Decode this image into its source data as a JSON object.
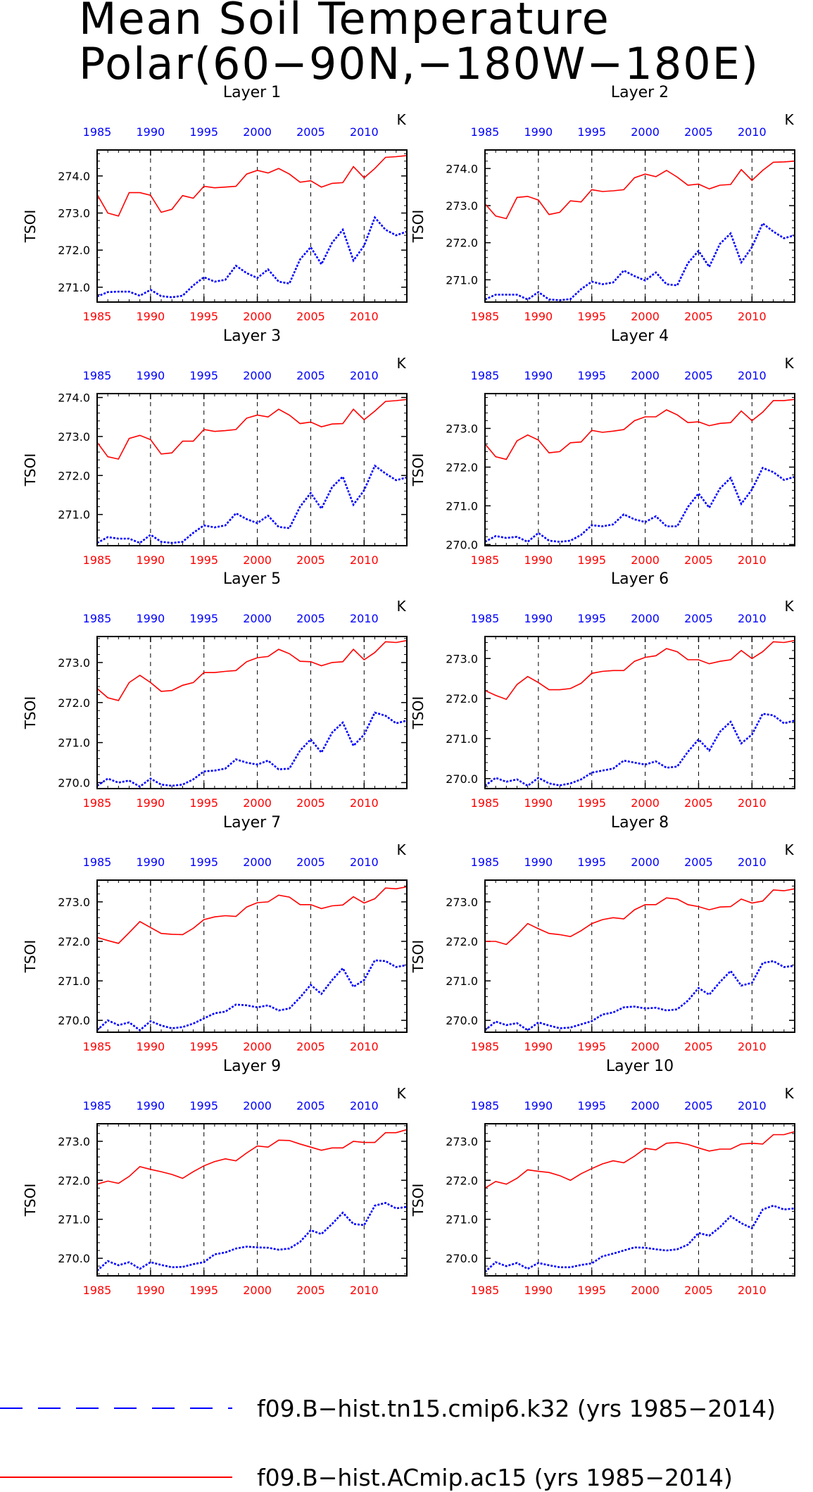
{
  "chart_data": {
    "type": "line",
    "title_lines": [
      "Mean Soil Temperature",
      "Polar(60−90N,−180W−180E)"
    ],
    "x": [
      1985,
      1986,
      1987,
      1988,
      1989,
      1990,
      1991,
      1992,
      1993,
      1994,
      1995,
      1996,
      1997,
      1998,
      1999,
      2000,
      2001,
      2002,
      2003,
      2004,
      2005,
      2006,
      2007,
      2008,
      2009,
      2010,
      2011,
      2012,
      2013,
      2014
    ],
    "xlim": [
      1985,
      2014
    ],
    "xticks": [
      1985,
      1990,
      1995,
      2000,
      2005,
      2010
    ],
    "ylabel": "TSOI",
    "unit": "K",
    "top_axis_color": "#0000ff",
    "bottom_axis_color": "#ff0000",
    "grid": "dashed vertical at 1990, 1995, 2000, 2005, 2010",
    "legend": [
      {
        "label": "f09.B−hist.tn15.cmip6.k32 (yrs 1985−2014)",
        "color": "#0000ff",
        "style": "dashed"
      },
      {
        "label": "f09.B−hist.ACmip.ac15 (yrs 1985−2014)",
        "color": "#ff0000",
        "style": "solid"
      }
    ],
    "panels": [
      {
        "title": "Layer 1",
        "ylim": [
          270.6,
          274.7
        ],
        "yticks": [
          "271.0",
          "272.0",
          "273.0",
          "274.0"
        ],
        "series": [
          {
            "color": "#0000ff",
            "values": [
              270.75,
              270.87,
              270.88,
              270.88,
              270.77,
              270.93,
              270.76,
              270.73,
              270.77,
              271.05,
              271.27,
              271.15,
              271.2,
              271.58,
              271.38,
              271.25,
              271.48,
              271.15,
              271.1,
              271.75,
              272.08,
              271.62,
              272.2,
              272.55,
              271.72,
              272.12,
              272.88,
              272.55,
              272.4,
              272.5
            ]
          },
          {
            "color": "#ff0000",
            "values": [
              273.5,
              273.0,
              272.92,
              273.55,
              273.55,
              273.48,
              273.02,
              273.1,
              273.47,
              273.4,
              273.72,
              273.68,
              273.7,
              273.72,
              274.05,
              274.15,
              274.08,
              274.2,
              274.05,
              273.83,
              273.87,
              273.7,
              273.8,
              273.82,
              274.25,
              273.95,
              274.2,
              274.5,
              274.52,
              274.55
            ]
          }
        ]
      },
      {
        "title": "Layer 2",
        "ylim": [
          270.4,
          274.5
        ],
        "yticks": [
          "271.0",
          "272.0",
          "273.0",
          "274.0"
        ],
        "series": [
          {
            "color": "#0000ff",
            "values": [
              270.47,
              270.6,
              270.6,
              270.6,
              270.47,
              270.67,
              270.47,
              270.45,
              270.48,
              270.75,
              270.95,
              270.88,
              270.93,
              271.25,
              271.1,
              270.98,
              271.2,
              270.88,
              270.85,
              271.45,
              271.78,
              271.35,
              271.97,
              272.25,
              271.47,
              271.88,
              272.52,
              272.3,
              272.12,
              272.2
            ]
          },
          {
            "color": "#ff0000",
            "values": [
              273.05,
              272.72,
              272.65,
              273.22,
              273.25,
              273.15,
              272.76,
              272.82,
              273.13,
              273.1,
              273.43,
              273.38,
              273.4,
              273.43,
              273.75,
              273.85,
              273.78,
              273.95,
              273.77,
              273.55,
              273.58,
              273.45,
              273.55,
              273.57,
              273.97,
              273.68,
              273.95,
              274.17,
              274.18,
              274.2
            ]
          }
        ]
      },
      {
        "title": "Layer 3",
        "ylim": [
          270.2,
          274.1
        ],
        "yticks": [
          "271.0",
          "272.0",
          "273.0",
          "274.0"
        ],
        "series": [
          {
            "color": "#0000ff",
            "values": [
              270.27,
              270.42,
              270.38,
              270.38,
              270.27,
              270.48,
              270.3,
              270.27,
              270.3,
              270.53,
              270.72,
              270.67,
              270.72,
              271.03,
              270.88,
              270.78,
              270.97,
              270.68,
              270.65,
              271.2,
              271.55,
              271.15,
              271.7,
              271.97,
              271.25,
              271.62,
              272.25,
              272.05,
              271.88,
              271.95
            ]
          },
          {
            "color": "#ff0000",
            "values": [
              272.85,
              272.48,
              272.42,
              272.95,
              273.03,
              272.92,
              272.55,
              272.58,
              272.88,
              272.88,
              273.18,
              273.13,
              273.15,
              273.18,
              273.47,
              273.55,
              273.5,
              273.7,
              273.55,
              273.33,
              273.37,
              273.25,
              273.32,
              273.33,
              273.7,
              273.43,
              273.65,
              273.9,
              273.92,
              273.95
            ]
          }
        ]
      },
      {
        "title": "Layer 4",
        "ylim": [
          269.97,
          273.9
        ],
        "yticks": [
          "270.0",
          "271.0",
          "272.0",
          "273.0"
        ],
        "series": [
          {
            "color": "#0000ff",
            "values": [
              270.07,
              270.22,
              270.17,
              270.2,
              270.07,
              270.3,
              270.1,
              270.07,
              270.1,
              270.25,
              270.5,
              270.47,
              270.52,
              270.78,
              270.65,
              270.58,
              270.73,
              270.47,
              270.47,
              270.97,
              271.32,
              270.95,
              271.45,
              271.72,
              271.05,
              271.42,
              271.98,
              271.87,
              271.67,
              271.75
            ]
          },
          {
            "color": "#ff0000",
            "values": [
              272.6,
              272.27,
              272.2,
              272.68,
              272.83,
              272.7,
              272.37,
              272.4,
              272.63,
              272.65,
              272.95,
              272.9,
              272.93,
              272.97,
              273.2,
              273.3,
              273.3,
              273.48,
              273.35,
              273.15,
              273.17,
              273.07,
              273.13,
              273.15,
              273.45,
              273.2,
              273.42,
              273.72,
              273.72,
              273.75
            ]
          }
        ]
      },
      {
        "title": "Layer 5",
        "ylim": [
          269.85,
          273.65
        ],
        "yticks": [
          "270.0",
          "271.0",
          "272.0",
          "273.0"
        ],
        "series": [
          {
            "color": "#0000ff",
            "values": [
              269.92,
              270.1,
              270.0,
              270.05,
              269.9,
              270.1,
              269.95,
              269.92,
              269.95,
              270.08,
              270.28,
              270.3,
              270.35,
              270.58,
              270.5,
              270.45,
              270.55,
              270.33,
              270.35,
              270.8,
              271.08,
              270.75,
              271.25,
              271.5,
              270.92,
              271.2,
              271.75,
              271.67,
              271.48,
              271.55
            ]
          },
          {
            "color": "#ff0000",
            "values": [
              272.35,
              272.12,
              272.05,
              272.5,
              272.68,
              272.5,
              272.28,
              272.3,
              272.43,
              272.5,
              272.75,
              272.75,
              272.78,
              272.8,
              273.02,
              273.12,
              273.15,
              273.33,
              273.22,
              273.03,
              273.02,
              272.92,
              273.0,
              273.02,
              273.33,
              273.07,
              273.25,
              273.52,
              273.5,
              273.55
            ]
          }
        ]
      },
      {
        "title": "Layer 6",
        "ylim": [
          269.75,
          273.55
        ],
        "yticks": [
          "270.0",
          "271.0",
          "272.0",
          "273.0"
        ],
        "series": [
          {
            "color": "#0000ff",
            "values": [
              269.82,
              270.02,
              269.92,
              269.98,
              269.82,
              270.02,
              269.88,
              269.83,
              269.88,
              269.98,
              270.15,
              270.2,
              270.25,
              270.45,
              270.4,
              270.35,
              270.43,
              270.27,
              270.3,
              270.67,
              270.98,
              270.7,
              271.17,
              271.42,
              270.88,
              271.1,
              271.62,
              271.58,
              271.38,
              271.45
            ]
          },
          {
            "color": "#ff0000",
            "values": [
              272.2,
              272.08,
              271.98,
              272.35,
              272.55,
              272.4,
              272.22,
              272.22,
              272.25,
              272.38,
              272.63,
              272.68,
              272.7,
              272.7,
              272.93,
              273.03,
              273.07,
              273.25,
              273.17,
              272.97,
              272.97,
              272.87,
              272.93,
              272.97,
              273.2,
              273.0,
              273.17,
              273.42,
              273.4,
              273.45
            ]
          }
        ]
      },
      {
        "title": "Layer 7",
        "ylim": [
          269.7,
          273.55
        ],
        "yticks": [
          "270.0",
          "271.0",
          "272.0",
          "273.0"
        ],
        "series": [
          {
            "color": "#0000ff",
            "values": [
              269.75,
              270.0,
              269.88,
              269.95,
              269.75,
              269.98,
              269.87,
              269.8,
              269.83,
              269.92,
              270.05,
              270.18,
              270.22,
              270.4,
              270.38,
              270.33,
              270.38,
              270.25,
              270.3,
              270.58,
              270.9,
              270.67,
              271.02,
              271.32,
              270.85,
              271.02,
              271.52,
              271.5,
              271.35,
              271.4
            ]
          },
          {
            "color": "#ff0000",
            "values": [
              272.1,
              272.02,
              271.95,
              272.22,
              272.5,
              272.35,
              272.2,
              272.18,
              272.17,
              272.33,
              272.55,
              272.62,
              272.65,
              272.63,
              272.87,
              272.98,
              273.0,
              273.17,
              273.12,
              272.93,
              272.93,
              272.83,
              272.9,
              272.92,
              273.13,
              272.97,
              273.08,
              273.35,
              273.33,
              273.38
            ]
          }
        ]
      },
      {
        "title": "Layer 8",
        "ylim": [
          269.7,
          273.55
        ],
        "yticks": [
          "270.0",
          "271.0",
          "272.0",
          "273.0"
        ],
        "series": [
          {
            "color": "#0000ff",
            "values": [
              269.75,
              269.97,
              269.88,
              269.93,
              269.75,
              269.95,
              269.87,
              269.8,
              269.82,
              269.9,
              269.98,
              270.15,
              270.2,
              270.33,
              270.35,
              270.3,
              270.32,
              270.25,
              270.28,
              270.5,
              270.82,
              270.65,
              270.97,
              271.25,
              270.88,
              270.95,
              271.45,
              271.5,
              271.35,
              271.38
            ]
          },
          {
            "color": "#ff0000",
            "values": [
              272.0,
              272.0,
              271.92,
              272.17,
              272.45,
              272.32,
              272.2,
              272.17,
              272.12,
              272.27,
              272.45,
              272.55,
              272.6,
              272.57,
              272.8,
              272.93,
              272.93,
              273.1,
              273.07,
              272.93,
              272.88,
              272.8,
              272.87,
              272.88,
              273.07,
              272.97,
              273.02,
              273.3,
              273.28,
              273.33
            ]
          }
        ]
      },
      {
        "title": "Layer 9",
        "ylim": [
          269.55,
          273.45
        ],
        "yticks": [
          "270.0",
          "271.0",
          "272.0",
          "273.0"
        ],
        "series": [
          {
            "color": "#0000ff",
            "values": [
              269.68,
              269.93,
              269.82,
              269.9,
              269.73,
              269.9,
              269.83,
              269.77,
              269.78,
              269.85,
              269.9,
              270.1,
              270.15,
              270.25,
              270.3,
              270.28,
              270.27,
              270.22,
              270.25,
              270.42,
              270.72,
              270.62,
              270.88,
              271.17,
              270.88,
              270.85,
              271.35,
              271.42,
              271.28,
              271.32
            ]
          },
          {
            "color": "#ff0000",
            "values": [
              271.9,
              271.98,
              271.92,
              272.1,
              272.35,
              272.28,
              272.22,
              272.15,
              272.05,
              272.22,
              272.37,
              272.48,
              272.55,
              272.5,
              272.7,
              272.88,
              272.85,
              273.03,
              273.02,
              272.93,
              272.85,
              272.77,
              272.83,
              272.83,
              273.0,
              272.97,
              272.97,
              273.22,
              273.22,
              273.3
            ]
          }
        ]
      },
      {
        "title": "Layer 10",
        "ylim": [
          269.55,
          273.45
        ],
        "yticks": [
          "270.0",
          "271.0",
          "272.0",
          "273.0"
        ],
        "series": [
          {
            "color": "#0000ff",
            "values": [
              269.65,
              269.9,
              269.8,
              269.88,
              269.73,
              269.88,
              269.82,
              269.77,
              269.77,
              269.83,
              269.87,
              270.05,
              270.12,
              270.2,
              270.28,
              270.27,
              270.23,
              270.2,
              270.23,
              270.35,
              270.65,
              270.58,
              270.8,
              271.08,
              270.9,
              270.77,
              271.25,
              271.35,
              271.25,
              271.28
            ]
          },
          {
            "color": "#ff0000",
            "values": [
              271.8,
              271.97,
              271.9,
              272.05,
              272.27,
              272.23,
              272.2,
              272.12,
              272.0,
              272.17,
              272.3,
              272.42,
              272.5,
              272.45,
              272.62,
              272.82,
              272.78,
              272.95,
              272.97,
              272.92,
              272.83,
              272.75,
              272.8,
              272.8,
              272.93,
              272.95,
              272.93,
              273.17,
              273.17,
              273.25
            ]
          }
        ]
      }
    ]
  }
}
